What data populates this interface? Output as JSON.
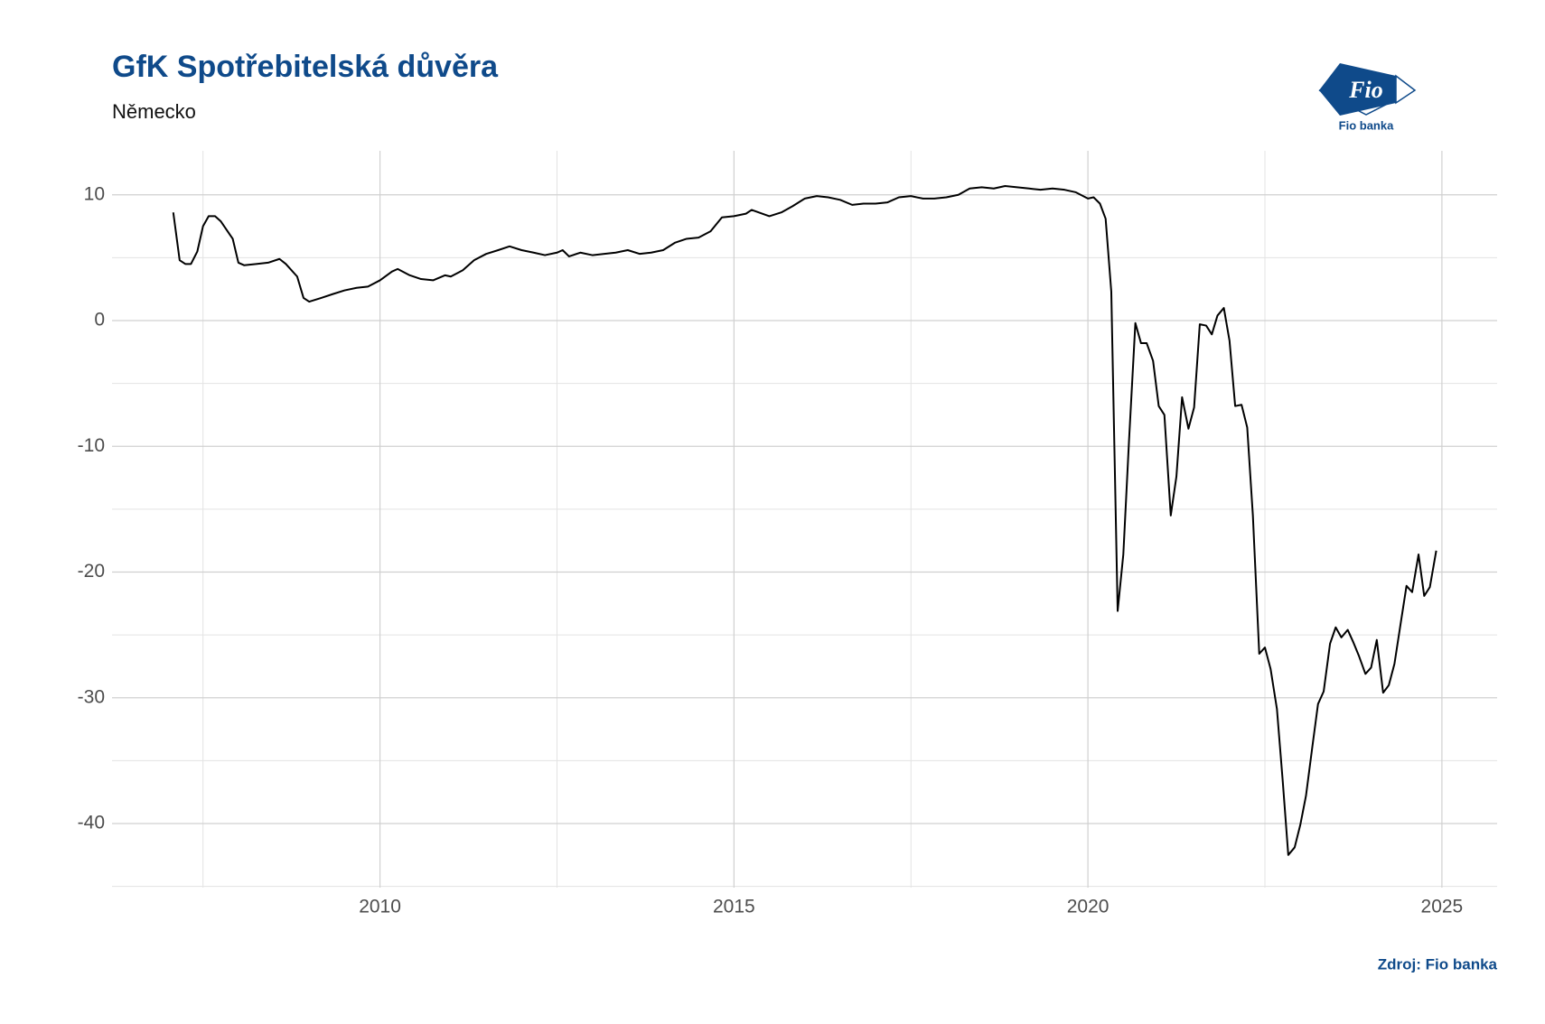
{
  "chart_data": {
    "type": "line",
    "title": "GfK Spotřebitelská důvěra",
    "subtitle": "Německo",
    "source": "Zdroj: Fio banka",
    "logo": {
      "mark": "Fio",
      "name": "Fio banka"
    },
    "grid": true,
    "color": "#000000",
    "xlim": [
      2006.215,
      2025.78
    ],
    "xticks": [
      2010,
      2015,
      2020,
      2025
    ],
    "ylim": [
      -45.1,
      13.5
    ],
    "yticks": [
      -40,
      -30,
      -20,
      -10,
      0,
      10
    ],
    "x": [
      2007.08,
      2007.17,
      2007.25,
      2007.33,
      2007.42,
      2007.5,
      2007.58,
      2007.67,
      2007.75,
      2007.92,
      2008.0,
      2008.08,
      2008.25,
      2008.42,
      2008.58,
      2008.67,
      2008.83,
      2008.92,
      2009.0,
      2009.17,
      2009.33,
      2009.5,
      2009.67,
      2009.83,
      2010.0,
      2010.17,
      2010.25,
      2010.42,
      2010.58,
      2010.75,
      2010.92,
      2011.0,
      2011.17,
      2011.33,
      2011.5,
      2011.67,
      2011.83,
      2012.0,
      2012.17,
      2012.33,
      2012.5,
      2012.58,
      2012.67,
      2012.83,
      2013.0,
      2013.17,
      2013.33,
      2013.5,
      2013.67,
      2013.83,
      2014.0,
      2014.17,
      2014.33,
      2014.5,
      2014.67,
      2014.83,
      2015.0,
      2015.17,
      2015.25,
      2015.5,
      2015.67,
      2015.83,
      2016.0,
      2016.17,
      2016.33,
      2016.5,
      2016.67,
      2016.83,
      2017.0,
      2017.17,
      2017.33,
      2017.5,
      2017.67,
      2017.83,
      2018.0,
      2018.17,
      2018.33,
      2018.5,
      2018.67,
      2018.83,
      2019.0,
      2019.17,
      2019.33,
      2019.5,
      2019.67,
      2019.83,
      2020.0,
      2020.08,
      2020.17,
      2020.25,
      2020.33,
      2020.42,
      2020.5,
      2020.58,
      2020.67,
      2020.75,
      2020.83,
      2020.92,
      2021.0,
      2021.08,
      2021.17,
      2021.25,
      2021.33,
      2021.42,
      2021.5,
      2021.58,
      2021.67,
      2021.75,
      2021.83,
      2021.92,
      2022.0,
      2022.08,
      2022.17,
      2022.25,
      2022.33,
      2022.42,
      2022.5,
      2022.58,
      2022.67,
      2022.75,
      2022.83,
      2022.92,
      2023.0,
      2023.08,
      2023.17,
      2023.25,
      2023.33,
      2023.42,
      2023.5,
      2023.58,
      2023.67,
      2023.75,
      2023.83,
      2023.92,
      2024.0,
      2024.08,
      2024.17,
      2024.25,
      2024.33,
      2024.42,
      2024.5,
      2024.58,
      2024.67,
      2024.75,
      2024.83,
      2024.92
    ],
    "series": [
      {
        "name": "GfK",
        "color": "#000000",
        "values": [
          8.6,
          4.8,
          4.5,
          4.5,
          5.5,
          7.5,
          8.3,
          8.3,
          7.9,
          6.5,
          4.6,
          4.4,
          4.5,
          4.6,
          4.9,
          4.5,
          3.5,
          1.8,
          1.5,
          1.8,
          2.1,
          2.4,
          2.6,
          2.7,
          3.2,
          3.9,
          4.1,
          3.6,
          3.3,
          3.2,
          3.6,
          3.5,
          4.0,
          4.8,
          5.3,
          5.6,
          5.9,
          5.6,
          5.4,
          5.2,
          5.4,
          5.6,
          5.1,
          5.4,
          5.2,
          5.3,
          5.4,
          5.6,
          5.3,
          5.4,
          5.6,
          6.2,
          6.5,
          6.6,
          7.1,
          8.2,
          8.3,
          8.5,
          8.8,
          8.3,
          8.6,
          9.1,
          9.7,
          9.9,
          9.8,
          9.6,
          9.2,
          9.3,
          9.3,
          9.4,
          9.8,
          9.9,
          9.7,
          9.7,
          9.8,
          10.0,
          10.5,
          10.6,
          10.5,
          10.7,
          10.6,
          10.5,
          10.4,
          10.5,
          10.4,
          10.2,
          9.7,
          9.8,
          9.3,
          8.1,
          2.3,
          -23.1,
          -18.6,
          -9.6,
          -0.2,
          -1.8,
          -1.8,
          -3.2,
          -6.8,
          -7.5,
          -15.5,
          -12.4,
          -6.1,
          -8.6,
          -6.9,
          -0.3,
          -0.4,
          -1.1,
          0.4,
          1.0,
          -1.6,
          -6.8,
          -6.7,
          -8.5,
          -15.5,
          -26.5,
          -26.0,
          -27.7,
          -30.9,
          -36.5,
          -42.5,
          -41.9,
          -40.1,
          -37.8,
          -33.9,
          -30.5,
          -29.5,
          -25.7,
          -24.4,
          -25.2,
          -24.6,
          -25.6,
          -26.7,
          -28.1,
          -27.6,
          -25.4,
          -29.6,
          -29.0,
          -27.3,
          -24.0,
          -21.1,
          -21.6,
          -18.6,
          -21.9,
          -21.2,
          -18.3
        ]
      }
    ]
  }
}
